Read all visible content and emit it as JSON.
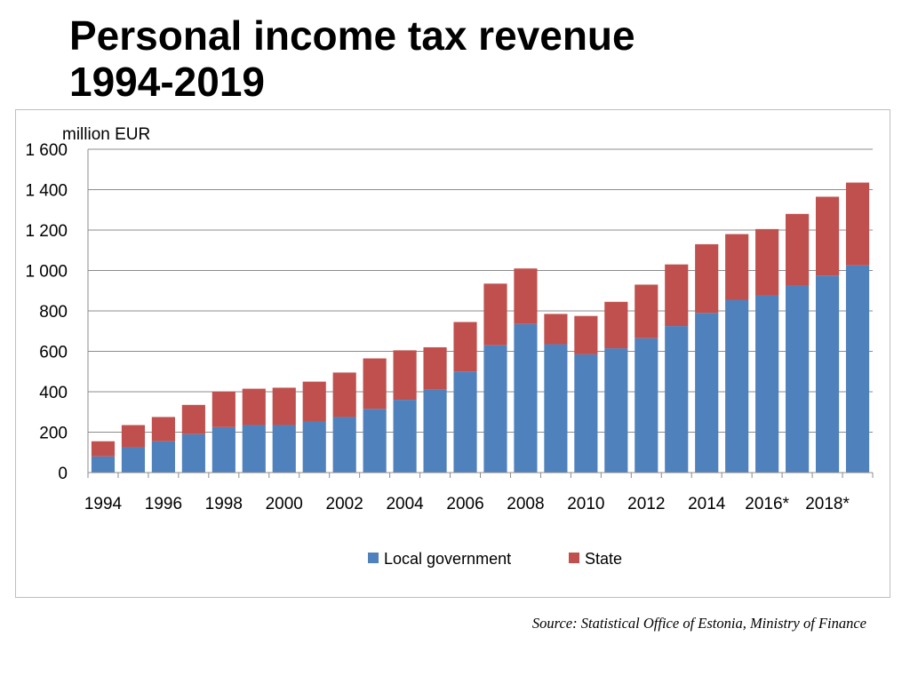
{
  "title_lines": [
    "Personal income tax revenue",
    "1994-2019"
  ],
  "source": "Source: Statistical Office of Estonia, Ministry of Finance",
  "chart_data": {
    "type": "bar",
    "stacked": true,
    "title": "Personal income tax revenue 1994-2019",
    "ylabel": "million EUR",
    "xlabel": "",
    "ylim": [
      0,
      1600
    ],
    "yticks": [
      0,
      200,
      400,
      600,
      800,
      1000,
      1200,
      1400,
      1600
    ],
    "ytick_labels": [
      "0",
      "200",
      "400",
      "600",
      "800",
      "1 000",
      "1 200",
      "1 400",
      "1 600"
    ],
    "categories": [
      "1994",
      "1995",
      "1996",
      "1997",
      "1998",
      "1999",
      "2000",
      "2001",
      "2002",
      "2003",
      "2004",
      "2005",
      "2006",
      "2007",
      "2008",
      "2009",
      "2010",
      "2011",
      "2012",
      "2013",
      "2014",
      "2015",
      "2016*",
      "2017*",
      "2018*",
      "2019*"
    ],
    "xtick_labels": [
      "1994",
      "",
      "1996",
      "",
      "1998",
      "",
      "2000",
      "",
      "2002",
      "",
      "2004",
      "",
      "2006",
      "",
      "2008",
      "",
      "2010",
      "",
      "2012",
      "",
      "2014",
      "",
      "2016*",
      "",
      "2018*",
      ""
    ],
    "series": [
      {
        "name": "Local government",
        "color": "#4f81bd",
        "values": [
          80,
          125,
          155,
          190,
          225,
          235,
          235,
          255,
          275,
          315,
          360,
          410,
          500,
          630,
          735,
          635,
          585,
          615,
          665,
          725,
          790,
          855,
          875,
          925,
          975,
          1025
        ]
      },
      {
        "name": "State",
        "color": "#c0504d",
        "values": [
          75,
          110,
          120,
          145,
          175,
          180,
          185,
          195,
          220,
          250,
          245,
          210,
          245,
          305,
          275,
          150,
          190,
          230,
          265,
          305,
          340,
          325,
          330,
          355,
          390,
          410
        ]
      }
    ],
    "grid": true,
    "legend_position": "bottom"
  }
}
